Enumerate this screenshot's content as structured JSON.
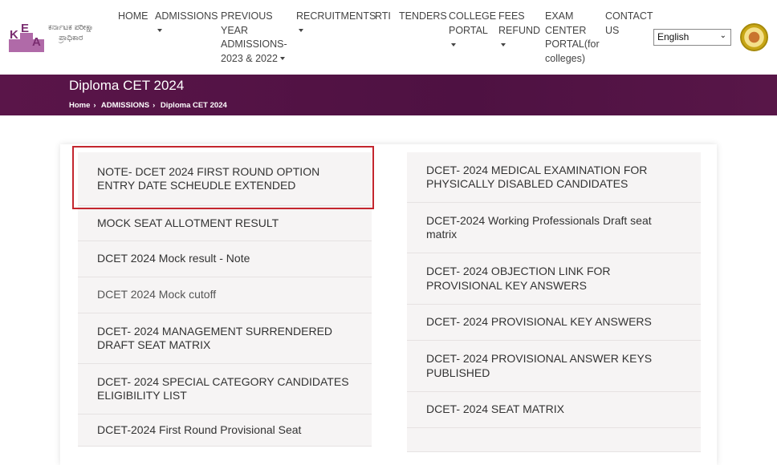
{
  "header": {
    "logo": {
      "letters": "KEA",
      "text_line1": "ಕರ್ನಾಟಕ ಪರೀಕ್ಷಾ",
      "text_line2": "ಪ್ರಾಧಿಕಾರ",
      "color": "#b06aa8"
    },
    "nav": [
      {
        "lines": [
          "HOME"
        ],
        "caret": false
      },
      {
        "lines": [
          "ADMISSIONS"
        ],
        "caret": true
      },
      {
        "lines": [
          "PREVIOUS",
          "YEAR",
          "ADMISSIONS-",
          "2023 & 2022"
        ],
        "caret": true
      },
      {
        "lines": [
          "RECRUITMENTS"
        ],
        "caret": true
      },
      {
        "lines": [
          "RTI"
        ],
        "caret": false
      },
      {
        "lines": [
          "TENDERS"
        ],
        "caret": false
      },
      {
        "lines": [
          "COLLEGE",
          "PORTAL"
        ],
        "caret": true
      },
      {
        "lines": [
          "FEES",
          "REFUND"
        ],
        "caret": true
      },
      {
        "lines": [
          "EXAM",
          "CENTER",
          "PORTAL(for",
          "colleges)"
        ],
        "caret": false
      },
      {
        "lines": [
          "CONTACT",
          "US"
        ],
        "caret": false
      }
    ],
    "language": {
      "selected": "English"
    },
    "emblem_icon": "karnataka-emblem"
  },
  "banner": {
    "title": "Diploma CET 2024",
    "breadcrumb": [
      "Home",
      "ADMISSIONS",
      "Diploma CET 2024"
    ],
    "color": "#5a1549"
  },
  "left_items": [
    "NOTE- DCET 2024 FIRST ROUND OPTION ENTRY DATE SCHEUDLE EXTENDED",
    "MOCK SEAT ALLOTMENT RESULT",
    "DCET 2024 Mock result - Note",
    "DCET 2024 Mock cutoff",
    "DCET- 2024 MANAGEMENT SURRENDERED DRAFT SEAT MATRIX",
    "DCET- 2024 SPECIAL CATEGORY CANDIDATES ELIGIBILITY LIST",
    "DCET-2024 First Round Provisional Seat"
  ],
  "right_items": [
    "DCET- 2024 MEDICAL EXAMINATION FOR PHYSICALLY DISABLED CANDIDATES",
    "DCET-2024 Working Professionals Draft seat matrix",
    "DCET- 2024 OBJECTION LINK FOR PROVISIONAL KEY ANSWERS",
    "DCET- 2024 PROVISIONAL KEY ANSWERS",
    "DCET- 2024 PROVISIONAL ANSWER KEYS PUBLISHED",
    "DCET- 2024 SEAT MATRIX",
    ""
  ],
  "highlight_color": "#c4262e"
}
